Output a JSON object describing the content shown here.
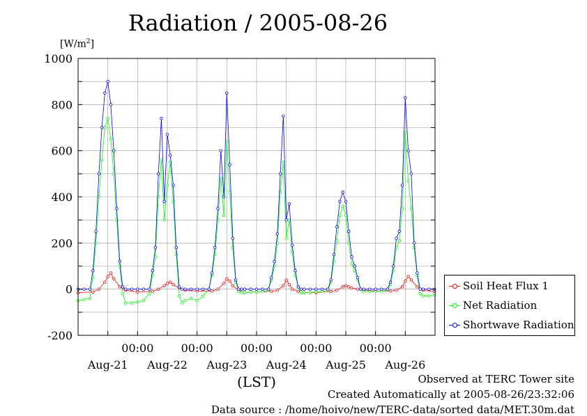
{
  "title": "Radiation / 2005-08-26",
  "unit_label": "[W/m²]",
  "x_axis_label": "(LST)",
  "footer": {
    "observed": "Observed at TERC Tower site",
    "created": "Created Automatically at 2005-08-26/23:32:06",
    "source": "Data source : /home/hoivo/new/TERC-data/sorted data/MET.30m.dat"
  },
  "chart_data": {
    "type": "line",
    "title": "Radiation / 2005-08-26",
    "ylabel": "[W/m²]",
    "xlabel": "(LST)",
    "ylim": [
      -200,
      1000
    ],
    "yticks": [
      -200,
      0,
      200,
      400,
      600,
      800,
      1000
    ],
    "xlim": [
      0,
      6
    ],
    "x_unit": "days from 2005-08-21 00:00 LST",
    "days": [
      "Aug-21",
      "Aug-22",
      "Aug-23",
      "Aug-24",
      "Aug-25",
      "Aug-26"
    ],
    "time_label": "00:00",
    "grid": true,
    "legend_position": "bottom-right outside",
    "series": [
      {
        "name": "Soil Heat Flux 1",
        "color": "#ff0000",
        "x": [
          0.0,
          0.25,
          0.35,
          0.45,
          0.5,
          0.55,
          0.6,
          0.7,
          0.8,
          1.0,
          1.25,
          1.35,
          1.45,
          1.5,
          1.55,
          1.6,
          1.7,
          1.8,
          2.0,
          2.25,
          2.35,
          2.45,
          2.5,
          2.55,
          2.6,
          2.7,
          2.8,
          3.0,
          3.25,
          3.35,
          3.45,
          3.5,
          3.55,
          3.6,
          3.7,
          3.8,
          4.0,
          4.25,
          4.35,
          4.45,
          4.5,
          4.55,
          4.6,
          4.7,
          4.8,
          5.0,
          5.25,
          5.35,
          5.45,
          5.5,
          5.55,
          5.6,
          5.7,
          5.8,
          5.99
        ],
        "y": [
          -15,
          -12,
          0,
          30,
          55,
          70,
          45,
          10,
          -5,
          -12,
          -10,
          0,
          15,
          25,
          30,
          20,
          5,
          -5,
          -8,
          -8,
          0,
          25,
          45,
          35,
          15,
          -5,
          -15,
          -12,
          -10,
          -5,
          15,
          40,
          20,
          0,
          -10,
          -15,
          -15,
          -10,
          -5,
          10,
          15,
          10,
          5,
          0,
          -5,
          -8,
          -8,
          -5,
          10,
          35,
          55,
          40,
          10,
          -5,
          -10
        ]
      },
      {
        "name": "Net Radiation",
        "color": "#00ff00",
        "x": [
          0.0,
          0.1,
          0.2,
          0.25,
          0.3,
          0.35,
          0.4,
          0.45,
          0.5,
          0.55,
          0.6,
          0.65,
          0.7,
          0.75,
          0.8,
          0.9,
          1.0,
          1.1,
          1.2,
          1.25,
          1.3,
          1.35,
          1.4,
          1.45,
          1.5,
          1.55,
          1.6,
          1.65,
          1.7,
          1.75,
          1.8,
          1.9,
          2.0,
          2.1,
          2.2,
          2.25,
          2.3,
          2.35,
          2.4,
          2.45,
          2.5,
          2.55,
          2.6,
          2.65,
          2.7,
          2.75,
          2.8,
          2.9,
          3.0,
          3.1,
          3.2,
          3.25,
          3.3,
          3.35,
          3.4,
          3.45,
          3.5,
          3.55,
          3.6,
          3.65,
          3.7,
          3.75,
          3.8,
          3.9,
          4.0,
          4.1,
          4.2,
          4.25,
          4.3,
          4.35,
          4.4,
          4.45,
          4.5,
          4.55,
          4.6,
          4.65,
          4.7,
          4.75,
          4.8,
          4.9,
          5.0,
          5.1,
          5.2,
          5.25,
          5.3,
          5.35,
          5.4,
          5.45,
          5.5,
          5.55,
          5.6,
          5.65,
          5.7,
          5.75,
          5.8,
          5.9,
          5.99
        ],
        "y": [
          -50,
          -45,
          -40,
          50,
          200,
          400,
          560,
          700,
          740,
          650,
          500,
          300,
          100,
          -20,
          -60,
          -60,
          -55,
          -50,
          -20,
          60,
          140,
          400,
          560,
          300,
          450,
          550,
          380,
          150,
          -30,
          -60,
          -50,
          -40,
          -50,
          -30,
          0,
          60,
          150,
          300,
          480,
          320,
          640,
          420,
          180,
          30,
          -10,
          -15,
          -15,
          -12,
          -12,
          -10,
          -5,
          40,
          100,
          200,
          420,
          550,
          220,
          300,
          160,
          60,
          10,
          -15,
          -15,
          -15,
          -12,
          -10,
          -5,
          30,
          120,
          210,
          320,
          360,
          320,
          200,
          110,
          80,
          40,
          0,
          -10,
          -10,
          -10,
          -8,
          -5,
          20,
          80,
          180,
          210,
          350,
          680,
          470,
          350,
          180,
          60,
          -20,
          -30,
          -30,
          -25
        ]
      },
      {
        "name": "Shortwave Radiation",
        "color": "#0000ff",
        "x": [
          0.0,
          0.1,
          0.2,
          0.25,
          0.3,
          0.35,
          0.4,
          0.45,
          0.5,
          0.55,
          0.6,
          0.65,
          0.7,
          0.75,
          0.8,
          0.9,
          1.0,
          1.1,
          1.2,
          1.25,
          1.3,
          1.35,
          1.4,
          1.45,
          1.5,
          1.55,
          1.6,
          1.65,
          1.7,
          1.75,
          1.8,
          1.9,
          2.0,
          2.1,
          2.2,
          2.25,
          2.3,
          2.35,
          2.4,
          2.45,
          2.5,
          2.55,
          2.6,
          2.65,
          2.7,
          2.75,
          2.8,
          2.9,
          3.0,
          3.1,
          3.2,
          3.25,
          3.3,
          3.35,
          3.4,
          3.45,
          3.5,
          3.55,
          3.6,
          3.65,
          3.7,
          3.75,
          3.8,
          3.9,
          4.0,
          4.1,
          4.2,
          4.25,
          4.3,
          4.35,
          4.4,
          4.45,
          4.5,
          4.55,
          4.6,
          4.65,
          4.7,
          4.75,
          4.8,
          4.9,
          5.0,
          5.1,
          5.2,
          5.25,
          5.3,
          5.35,
          5.4,
          5.45,
          5.5,
          5.55,
          5.6,
          5.65,
          5.7,
          5.75,
          5.8,
          5.9,
          5.99
        ],
        "y": [
          0,
          0,
          0,
          80,
          250,
          500,
          700,
          850,
          900,
          800,
          600,
          350,
          120,
          10,
          0,
          0,
          0,
          0,
          0,
          80,
          180,
          500,
          740,
          380,
          670,
          580,
          450,
          180,
          10,
          0,
          0,
          0,
          0,
          0,
          0,
          70,
          180,
          350,
          600,
          400,
          850,
          540,
          220,
          40,
          0,
          0,
          0,
          0,
          0,
          0,
          0,
          50,
          120,
          240,
          500,
          750,
          300,
          370,
          190,
          80,
          10,
          0,
          0,
          0,
          0,
          0,
          0,
          40,
          150,
          270,
          380,
          420,
          380,
          250,
          140,
          100,
          50,
          0,
          0,
          0,
          0,
          0,
          0,
          30,
          100,
          220,
          250,
          450,
          830,
          600,
          500,
          200,
          70,
          0,
          0,
          0,
          0
        ]
      }
    ]
  }
}
